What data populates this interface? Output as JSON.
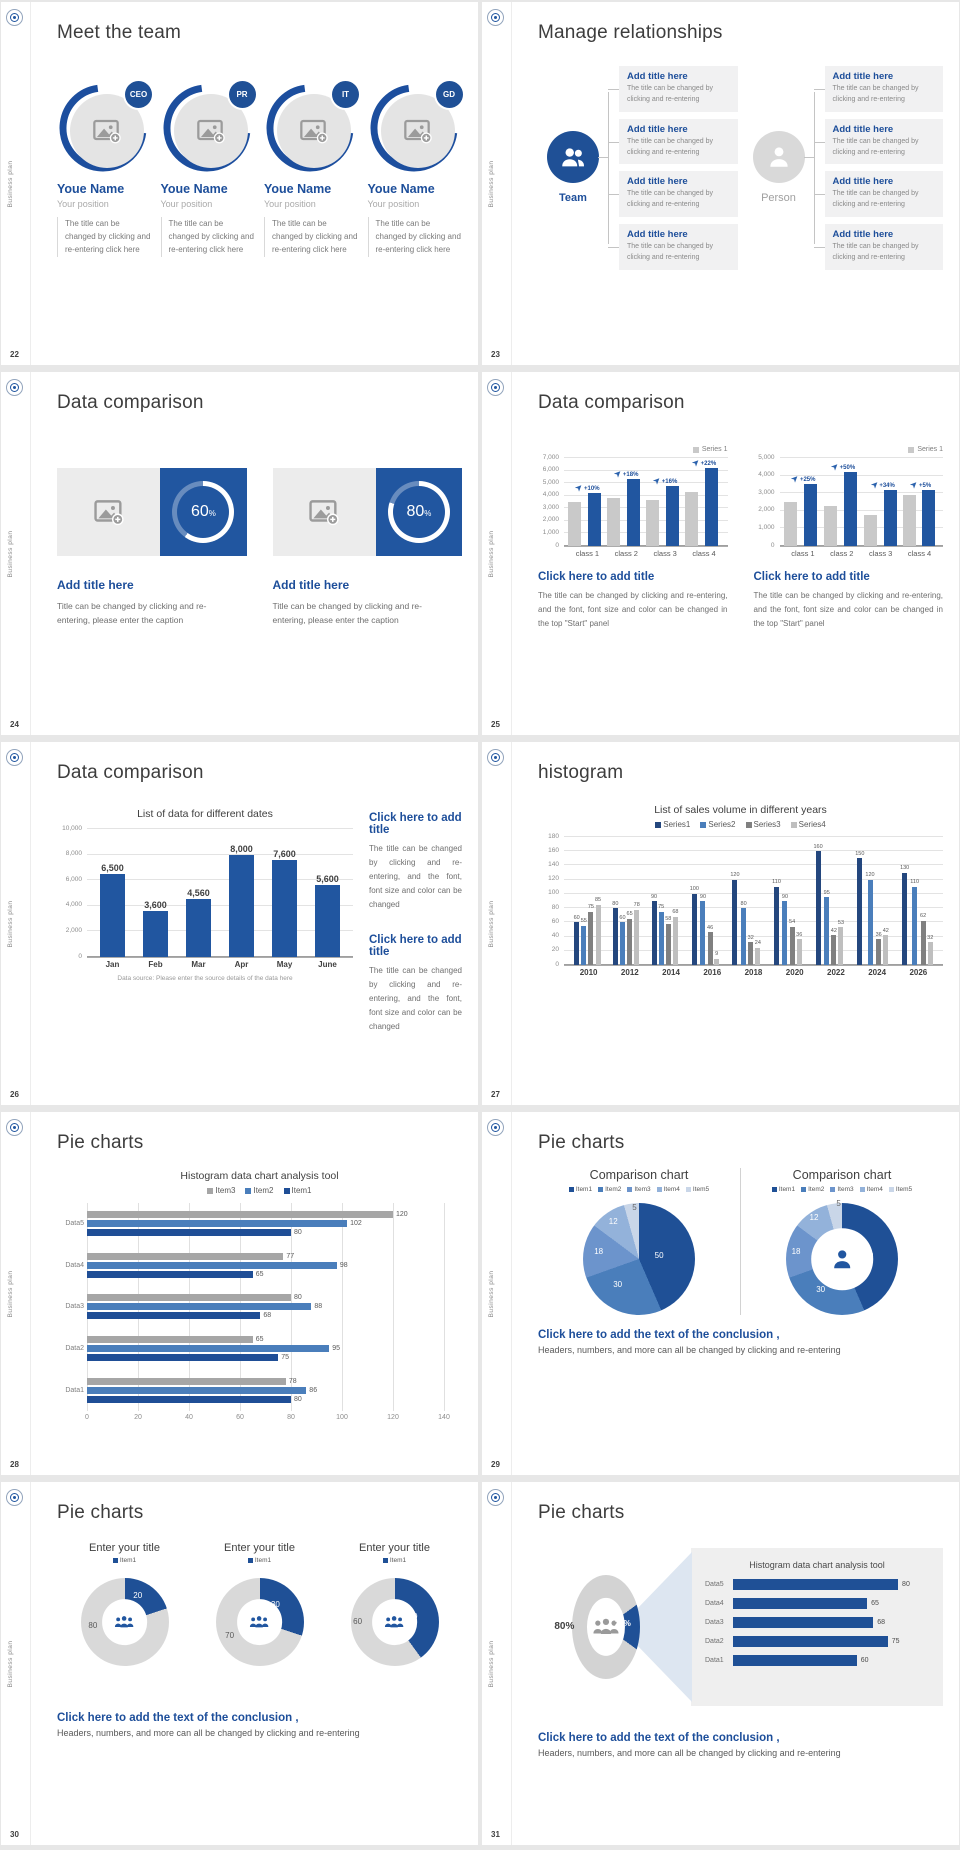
{
  "brand": {
    "vertical_label": "Business plan",
    "accent": "#1f5096",
    "accent_mid": "#4a7ebb",
    "gray_light": "#c9c9c9",
    "gray_dark": "#808080"
  },
  "slides": {
    "s22": {
      "page_number": "22",
      "title": "Meet the team",
      "members": [
        {
          "badge": "CEO",
          "name": "Youe Name",
          "position": "Your position",
          "description": "The title can be changed by clicking and re-entering click here"
        },
        {
          "badge": "PR",
          "name": "Youe Name",
          "position": "Your position",
          "description": "The title can be changed by clicking and re-entering click here"
        },
        {
          "badge": "IT",
          "name": "Youe Name",
          "position": "Your position",
          "description": "The title can be changed by clicking and re-entering click here"
        },
        {
          "badge": "GD",
          "name": "Youe Name",
          "position": "Your position",
          "description": "The title can be changed by clicking and re-entering click here"
        }
      ]
    },
    "s23": {
      "page_number": "23",
      "title": "Manage relationships",
      "team_label": "Team",
      "person_label": "Person",
      "box": {
        "title": "Add title here",
        "text": "The title can be changed by clicking and re-entering"
      }
    },
    "s24": {
      "page_number": "24",
      "title": "Data comparison",
      "items": [
        {
          "value": 60,
          "value_label": "60",
          "percent_sign": "%",
          "heading": "Add title here",
          "caption": "Title can be changed by clicking and re-entering, please enter the caption"
        },
        {
          "value": 80,
          "value_label": "80",
          "percent_sign": "%",
          "heading": "Add title here",
          "caption": "Title can be changed by clicking and re-entering, please enter the caption"
        }
      ]
    },
    "s25": {
      "page_number": "25",
      "title": "Data comparison",
      "blocks": [
        {
          "heading": "Click here to add title",
          "caption": "The title can be changed by clicking and re-entering, and the font, font size and color can be changed in the top \"Start\" panel"
        },
        {
          "heading": "Click here to add title",
          "caption": "The title can be changed by clicking and re-entering, and the font, font size and color can be changed in the top \"Start\" panel"
        }
      ]
    },
    "s26": {
      "page_number": "26",
      "title": "Data comparison",
      "blocks": [
        {
          "heading": "Click here to add title",
          "caption": "The title can be changed by clicking and re-entering, and the font, font size and color can be changed"
        },
        {
          "heading": "Click here to add title",
          "caption": "The title can be changed by clicking and re-entering, and the font, font size and color can be changed"
        }
      ]
    },
    "s27": {
      "page_number": "27",
      "title": "histogram"
    },
    "s28": {
      "page_number": "28",
      "title": "Pie charts"
    },
    "s29": {
      "page_number": "29",
      "title": "Pie charts",
      "conclusion": {
        "heading": "Click here to add the text of the conclusion ,",
        "text": "Headers, numbers, and more can all be changed by clicking and re-entering"
      }
    },
    "s30": {
      "page_number": "30",
      "title": "Pie charts",
      "conclusion": {
        "heading": "Click here to add the text of the conclusion ,",
        "text": "Headers, numbers, and more can all be changed by clicking and re-entering"
      }
    },
    "s31": {
      "page_number": "31",
      "title": "Pie charts",
      "conclusion": {
        "heading": "Click here to add the text of the conclusion ,",
        "text": "Headers, numbers, and more can all be changed by clicking and re-entering"
      }
    }
  },
  "chart_data": [
    {
      "id": "s25-left",
      "type": "bar",
      "legend": [
        "Series 1"
      ],
      "legend_position": "top-right",
      "categories": [
        "class 1",
        "class 2",
        "class 3",
        "class 4"
      ],
      "series": [
        {
          "name": "base",
          "color": "#c9c9c9",
          "values": [
            3500,
            3800,
            3700,
            4300
          ]
        },
        {
          "name": "Series 1",
          "color": "#2156a0",
          "values": [
            4200,
            5300,
            4800,
            6200
          ]
        }
      ],
      "growth_labels": [
        "+10%",
        "+18%",
        "+16%",
        "+22%"
      ],
      "ylim": [
        0,
        7000
      ],
      "ytick": 1000,
      "grid": true
    },
    {
      "id": "s25-right",
      "type": "bar",
      "legend": [
        "Series 1"
      ],
      "legend_position": "top-right",
      "categories": [
        "class 1",
        "class 2",
        "class 3",
        "class 4"
      ],
      "series": [
        {
          "name": "base",
          "color": "#c9c9c9",
          "values": [
            2500,
            2300,
            1750,
            2900
          ]
        },
        {
          "name": "Series 1",
          "color": "#2156a0",
          "values": [
            3500,
            4200,
            3200,
            3200
          ]
        }
      ],
      "growth_labels": [
        "+25%",
        "+50%",
        "+34%",
        "+5%"
      ],
      "ylim": [
        0,
        5000
      ],
      "ytick": 1000,
      "grid": true
    },
    {
      "id": "s26",
      "type": "bar",
      "title": "List of data for different dates",
      "categories": [
        "Jan",
        "Feb",
        "Mar",
        "Apr",
        "May",
        "June"
      ],
      "values": [
        6500,
        3600,
        4560,
        8000,
        7600,
        5600
      ],
      "value_labels": [
        "6,500",
        "3,600",
        "4,560",
        "8,000",
        "7,600",
        "5,600"
      ],
      "colors": [
        "#2156a0"
      ],
      "ylim": [
        0,
        10000
      ],
      "ytick": 2000,
      "grid": true,
      "footnote": "Data source: Please enter the source details of the data here"
    },
    {
      "id": "s27",
      "type": "bar",
      "title": "List of sales volume in different years",
      "categories": [
        "2010",
        "2012",
        "2014",
        "2016",
        "2018",
        "2020",
        "2022",
        "2024",
        "2026"
      ],
      "series": [
        {
          "name": "Series1",
          "color": "#24477e",
          "values": [
            60,
            80,
            90,
            100,
            120,
            110,
            160,
            150,
            130
          ]
        },
        {
          "name": "Series2",
          "color": "#4a7ebb",
          "values": [
            55,
            60,
            75,
            90,
            80,
            90,
            95,
            120,
            110
          ]
        },
        {
          "name": "Series3",
          "color": "#808080",
          "values": [
            75,
            65,
            58,
            46,
            32,
            54,
            42,
            36,
            62
          ]
        },
        {
          "name": "Series4",
          "color": "#bfbfbf",
          "values": [
            85,
            78,
            68,
            9,
            24,
            36,
            53,
            42,
            32
          ]
        }
      ],
      "show_values": true,
      "ylim": [
        0,
        180
      ],
      "ytick": 20,
      "grid": true
    },
    {
      "id": "s28",
      "type": "bar-horizontal",
      "title": "Histogram data chart analysis tool",
      "categories": [
        "Data1",
        "Data2",
        "Data3",
        "Data4",
        "Data5"
      ],
      "series": [
        {
          "name": "Item1",
          "color": "#1f4e96",
          "values": [
            80,
            75,
            68,
            65,
            80
          ]
        },
        {
          "name": "Item2",
          "color": "#4a7ebb",
          "values": [
            86,
            95,
            88,
            98,
            102
          ]
        },
        {
          "name": "Item3",
          "color": "#a6a6a6",
          "values": [
            78,
            65,
            80,
            77,
            120
          ]
        }
      ],
      "xlim": [
        0,
        140
      ],
      "xtick": 20,
      "grid": true
    },
    {
      "id": "s29-pie",
      "type": "pie",
      "title": "Comparison chart",
      "labels": [
        "Item1",
        "Item2",
        "Item3",
        "Item4",
        "Item5"
      ],
      "values": [
        50,
        30,
        18,
        12,
        5
      ],
      "colors": [
        "#1f5096",
        "#4a7ebb",
        "#6c94cc",
        "#93b2da",
        "#c9d6e8"
      ]
    },
    {
      "id": "s29-donut",
      "type": "donut",
      "title": "Comparison chart",
      "labels": [
        "Item1",
        "Item2",
        "Item3",
        "Item4",
        "Item5"
      ],
      "values": [
        50,
        30,
        18,
        12,
        5
      ],
      "colors": [
        "#1f5096",
        "#4a7ebb",
        "#6c94cc",
        "#93b2da",
        "#c9d6e8"
      ],
      "hole": "55%"
    },
    {
      "id": "s30-1",
      "type": "donut",
      "title": "Enter your title",
      "legend": [
        "Item1"
      ],
      "values": [
        20,
        80
      ],
      "colors": [
        "#1f5096",
        "#d9d9d9"
      ],
      "hole": "52%"
    },
    {
      "id": "s30-2",
      "type": "donut",
      "title": "Enter your title",
      "legend": [
        "Item1"
      ],
      "values": [
        30,
        70
      ],
      "colors": [
        "#1f5096",
        "#d9d9d9"
      ],
      "hole": "52%"
    },
    {
      "id": "s30-3",
      "type": "donut",
      "title": "Enter your title",
      "legend": [
        "Item1"
      ],
      "values": [
        40,
        60
      ],
      "colors": [
        "#1f5096",
        "#d9d9d9"
      ],
      "hole": "52%"
    },
    {
      "id": "s31-donut",
      "type": "donut",
      "values": [
        20,
        80
      ],
      "slice_labels": [
        "20%",
        "80%"
      ],
      "colors": [
        "#1f5096",
        "#d3d3d3"
      ],
      "hole": "56%",
      "start_angle": 54
    },
    {
      "id": "s31-bars",
      "type": "bar-horizontal-simple",
      "title": "Histogram data chart analysis tool",
      "categories": [
        "Data1",
        "Data2",
        "Data3",
        "Data4",
        "Data5"
      ],
      "values": [
        60,
        75,
        68,
        65,
        80
      ],
      "color": "#1f5096",
      "xmax": 95
    }
  ]
}
